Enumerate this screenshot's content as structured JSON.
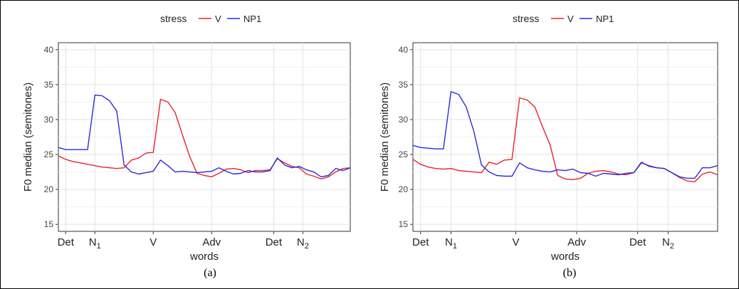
{
  "chart_data": [
    {
      "type": "line",
      "panel_label": "(a)",
      "legend_title": "stress",
      "legend_position": "top",
      "ylabel": "F0 median (semitones)",
      "xlabel": "words",
      "ylim": [
        14,
        41
      ],
      "yticks": [
        15,
        20,
        25,
        30,
        35,
        40
      ],
      "grid": true,
      "xlim": [
        0,
        80
      ],
      "category_ticks": [
        {
          "label": "Det",
          "sub": "",
          "x": 2
        },
        {
          "label": "N",
          "sub": "1",
          "x": 10
        },
        {
          "label": "V",
          "sub": "",
          "x": 26
        },
        {
          "label": "Adv",
          "sub": "",
          "x": 42
        },
        {
          "label": "Det",
          "sub": "",
          "x": 59
        },
        {
          "label": "N",
          "sub": "2",
          "x": 67
        }
      ],
      "series": [
        {
          "name": "V",
          "color": "#e8242b",
          "x": [
            0,
            2,
            4,
            6,
            8,
            10,
            12,
            14,
            16,
            18,
            20,
            22,
            24,
            26,
            28,
            30,
            32,
            34,
            36,
            38,
            40,
            42,
            44,
            46,
            48,
            50,
            52,
            54,
            56,
            58,
            60,
            62,
            64,
            66,
            68,
            70,
            72,
            74,
            76,
            78,
            80
          ],
          "y": [
            24.8,
            24.3,
            24.0,
            23.8,
            23.6,
            23.4,
            23.2,
            23.1,
            23.0,
            23.1,
            24.2,
            24.5,
            25.2,
            25.3,
            32.9,
            32.5,
            31.0,
            27.8,
            24.7,
            22.3,
            22.0,
            21.8,
            22.3,
            22.9,
            23.0,
            22.8,
            22.4,
            22.7,
            22.7,
            22.8,
            24.4,
            23.8,
            23.3,
            23.1,
            22.2,
            21.9,
            21.5,
            21.8,
            22.5,
            23.0,
            23.1
          ]
        },
        {
          "name": "NP1",
          "color": "#2b2bd9",
          "x": [
            0,
            2,
            4,
            6,
            8,
            10,
            12,
            14,
            16,
            18,
            20,
            22,
            24,
            26,
            28,
            30,
            32,
            34,
            36,
            38,
            40,
            42,
            44,
            46,
            48,
            50,
            52,
            54,
            56,
            58,
            60,
            62,
            64,
            66,
            68,
            70,
            72,
            74,
            76,
            78,
            80
          ],
          "y": [
            26.0,
            25.7,
            25.7,
            25.7,
            25.7,
            33.5,
            33.4,
            32.7,
            31.2,
            23.5,
            22.5,
            22.2,
            22.4,
            22.6,
            24.2,
            23.4,
            22.5,
            22.6,
            22.5,
            22.4,
            22.5,
            22.6,
            23.1,
            22.6,
            22.2,
            22.3,
            22.7,
            22.5,
            22.5,
            22.7,
            24.5,
            23.5,
            23.1,
            23.3,
            22.8,
            22.5,
            21.8,
            22.0,
            23.0,
            22.7,
            23.1
          ]
        }
      ]
    },
    {
      "type": "line",
      "panel_label": "(b)",
      "legend_title": "stress",
      "legend_position": "top",
      "ylabel": "F0 median (semitones)",
      "xlabel": "words",
      "ylim": [
        14,
        41
      ],
      "yticks": [
        15,
        20,
        25,
        30,
        35,
        40
      ],
      "grid": true,
      "xlim": [
        0,
        80
      ],
      "category_ticks": [
        {
          "label": "Det",
          "sub": "",
          "x": 2
        },
        {
          "label": "N",
          "sub": "1",
          "x": 10
        },
        {
          "label": "V",
          "sub": "",
          "x": 27
        },
        {
          "label": "Adv",
          "sub": "",
          "x": 43
        },
        {
          "label": "Det",
          "sub": "",
          "x": 59
        },
        {
          "label": "N",
          "sub": "2",
          "x": 67
        }
      ],
      "series": [
        {
          "name": "V",
          "color": "#e8242b",
          "x": [
            0,
            2,
            4,
            6,
            8,
            10,
            12,
            14,
            16,
            18,
            20,
            22,
            24,
            26,
            28,
            30,
            32,
            34,
            36,
            38,
            40,
            42,
            44,
            46,
            48,
            50,
            52,
            54,
            56,
            58,
            60,
            62,
            64,
            66,
            68,
            70,
            72,
            74,
            76,
            78,
            80
          ],
          "y": [
            24.3,
            23.6,
            23.2,
            23.0,
            22.9,
            23.0,
            22.7,
            22.6,
            22.5,
            22.4,
            23.9,
            23.6,
            24.2,
            24.3,
            33.1,
            32.8,
            31.8,
            29.0,
            26.4,
            22.0,
            21.5,
            21.4,
            21.6,
            22.3,
            22.6,
            22.7,
            22.5,
            22.2,
            22.1,
            22.4,
            23.8,
            23.4,
            23.1,
            23.0,
            22.4,
            21.7,
            21.2,
            21.1,
            22.2,
            22.5,
            22.1
          ]
        },
        {
          "name": "NP1",
          "color": "#2b2bd9",
          "x": [
            0,
            2,
            4,
            6,
            8,
            10,
            12,
            14,
            16,
            18,
            20,
            22,
            24,
            26,
            28,
            30,
            32,
            34,
            36,
            38,
            40,
            42,
            44,
            46,
            48,
            50,
            52,
            54,
            56,
            58,
            60,
            62,
            64,
            66,
            68,
            70,
            72,
            74,
            76,
            78,
            80
          ],
          "y": [
            26.3,
            26.0,
            25.9,
            25.8,
            25.8,
            34.0,
            33.6,
            31.8,
            28.3,
            23.5,
            22.5,
            22.0,
            21.9,
            21.9,
            23.8,
            23.1,
            22.8,
            22.6,
            22.5,
            22.8,
            22.7,
            22.9,
            22.4,
            22.3,
            21.9,
            22.3,
            22.2,
            22.1,
            22.3,
            22.4,
            23.9,
            23.3,
            23.1,
            23.0,
            22.4,
            21.8,
            21.6,
            21.6,
            23.1,
            23.1,
            23.4
          ]
        }
      ]
    }
  ]
}
